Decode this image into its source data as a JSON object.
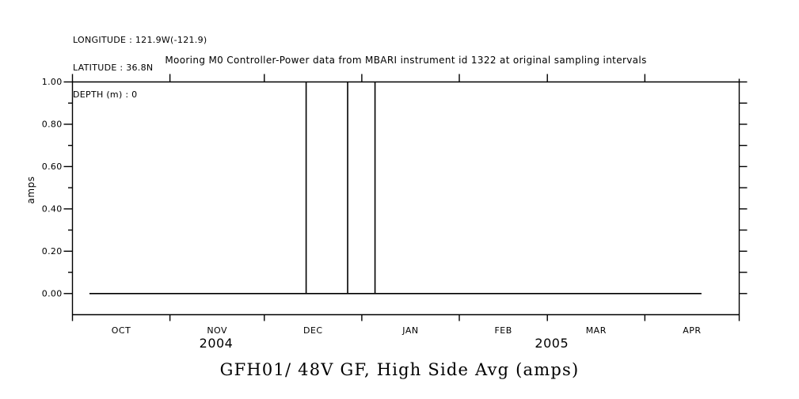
{
  "header_info": {
    "longitude": "LONGITUDE : 121.9W(-121.9)",
    "latitude": "LATITUDE : 36.8N",
    "depth": "DEPTH (m) : 0"
  },
  "chart_data": {
    "type": "line",
    "title": "Mooring M0 Controller-Power data from MBARI instrument id 1322 at original sampling intervals",
    "bottom_title": "GFH01/ 48V GF, High Side Avg (amps)",
    "ylabel": "amps",
    "ylim": [
      -0.1,
      1.0
    ],
    "grid": false,
    "colors": {
      "line": "#000000",
      "background": "#ffffff",
      "text": "#000000"
    },
    "y_major_ticks": [
      {
        "value": 0.0,
        "label": "0.00"
      },
      {
        "value": 0.2,
        "label": "0.20"
      },
      {
        "value": 0.4,
        "label": "0.40"
      },
      {
        "value": 0.6,
        "label": "0.60"
      },
      {
        "value": 0.8,
        "label": "0.80"
      },
      {
        "value": 1.0,
        "label": "1.00"
      }
    ],
    "y_minor_ticks": [
      0.1,
      0.3,
      0.5,
      0.7,
      0.9
    ],
    "y_right_ticks": [
      0.0,
      0.1,
      0.2,
      0.3,
      0.4,
      0.5,
      0.6,
      0.7,
      0.8,
      0.9,
      1.0
    ],
    "x_axis": {
      "epoch": "2004-10-01",
      "total_days": 212,
      "month_boundaries_days": [
        0,
        31,
        61,
        92,
        123,
        151,
        182,
        212
      ],
      "month_labels": [
        "OCT",
        "NOV",
        "DEC",
        "JAN",
        "FEB",
        "MAR",
        "APR"
      ],
      "year_labels": [
        {
          "text": "2004",
          "day": 45.7
        },
        {
          "text": "2005",
          "day": 152.4
        }
      ]
    },
    "series": [
      {
        "name": "GFH01/ 48V GF, High Side Avg (amps)",
        "baseline_value": 0.0,
        "start_day": 5.4,
        "end_day": 200.0,
        "spike_value": 1.0,
        "spikes": [
          {
            "day": 74.3,
            "value": 1.0,
            "approx_date": "2004-12-14"
          },
          {
            "day": 87.5,
            "value": 1.0,
            "approx_date": "2004-12-28"
          },
          {
            "day": 96.2,
            "value": 1.0,
            "approx_date": "2005-01-05"
          }
        ]
      }
    ]
  }
}
